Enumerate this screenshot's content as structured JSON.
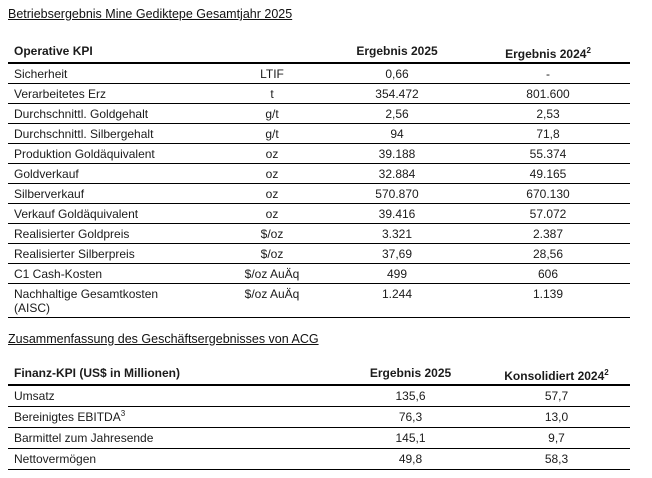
{
  "headings": {
    "operative": "Betriebsergebnis Mine Gediktepe Gesamtjahr 2025",
    "finanz": "Zusammenfassung des Geschäftsergebnisses von ACG"
  },
  "operative_table": {
    "headers": {
      "kpi": "Operative KPI",
      "unit": "",
      "y2025": "Ergebnis 2025",
      "y2024": "Ergebnis 2024",
      "y2024_sup": "2"
    },
    "rows": [
      {
        "label": "Sicherheit",
        "unit": "LTIF",
        "v2025": "0,66",
        "v2024": "-"
      },
      {
        "label": "Verarbeitetes Erz",
        "unit": "t",
        "v2025": "354.472",
        "v2024": "801.600"
      },
      {
        "label": "Durchschnittl. Goldgehalt",
        "unit": "g/t",
        "v2025": "2,56",
        "v2024": "2,53"
      },
      {
        "label": "Durchschnittl. Silbergehalt",
        "unit": "g/t",
        "v2025": "94",
        "v2024": "71,8"
      },
      {
        "label": "Produktion Goldäquivalent",
        "unit": "oz",
        "v2025": "39.188",
        "v2024": "55.374"
      },
      {
        "label": "Goldverkauf",
        "unit": "oz",
        "v2025": "32.884",
        "v2024": "49.165"
      },
      {
        "label": "Silberverkauf",
        "unit": "oz",
        "v2025": "570.870",
        "v2024": "670.130"
      },
      {
        "label": "Verkauf Goldäquivalent",
        "unit": "oz",
        "v2025": "39.416",
        "v2024": "57.072"
      },
      {
        "label": "Realisierter Goldpreis",
        "unit": "$/oz",
        "v2025": "3.321",
        "v2024": "2.387"
      },
      {
        "label": "Realisierter Silberpreis",
        "unit": "$/oz",
        "v2025": "37,69",
        "v2024": "28,56"
      },
      {
        "label": "C1 Cash-Kosten",
        "unit": "$/oz AuÄq",
        "v2025": "499",
        "v2024": "606"
      },
      {
        "label": "Nachhaltige Gesamtkosten",
        "label2": "(AISC)",
        "unit": "$/oz AuÄq",
        "v2025": "1.244",
        "v2024": "1.139"
      }
    ]
  },
  "finanz_table": {
    "headers": {
      "kpi": "Finanz-KPI (US$ in Millionen)",
      "y2025": "Ergebnis 2025",
      "y2024": "Konsolidiert 2024",
      "y2024_sup": "2"
    },
    "rows": [
      {
        "label": "Umsatz",
        "v2025": "135,6",
        "v2024": "57,7"
      },
      {
        "label": "Bereinigtes EBITDA",
        "label_sup": "3",
        "v2025": "76,3",
        "v2024": "13,0"
      },
      {
        "label": "Barmittel zum Jahresende",
        "v2025": "145,1",
        "v2024": "9,7"
      },
      {
        "label": "Nettovermögen",
        "v2025": "49,8",
        "v2024": "58,3"
      }
    ]
  }
}
